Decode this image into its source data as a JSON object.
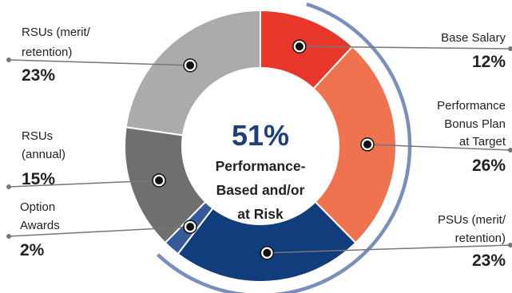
{
  "chart_data": {
    "type": "pie",
    "variant": "donut",
    "start_angle_deg": 0,
    "direction": "clockwise",
    "slices": [
      {
        "name": [
          "Base Salary"
        ],
        "value": 12,
        "label": "12%",
        "color": "#e8372a",
        "label_side": "right"
      },
      {
        "name": [
          "Performance",
          "Bonus Plan",
          "at Target"
        ],
        "value": 26,
        "label": "26%",
        "color": "#f07350",
        "label_side": "right"
      },
      {
        "name": [
          "PSUs (merit/",
          "retention)"
        ],
        "value": 23,
        "label": "23%",
        "color": "#123d7c",
        "label_side": "right"
      },
      {
        "name": [
          "Option",
          "Awards"
        ],
        "value": 2,
        "label": "2%",
        "color": "#355a99",
        "label_side": "left"
      },
      {
        "name": [
          "RSUs",
          "(annual)"
        ],
        "value": 15,
        "label": "15%",
        "color": "#6f6f6f",
        "label_side": "left"
      },
      {
        "name": [
          "RSUs (merit/",
          "retention)"
        ],
        "value": 23,
        "label": "23%",
        "color": "#ababab",
        "label_side": "left"
      }
    ],
    "center": {
      "value": "51%",
      "lines": [
        "Performance-",
        "Based and/or",
        "at Risk"
      ]
    },
    "highlight_arc": {
      "color": "#7b8fbd",
      "covers": [
        "Base Salary",
        "Performance Bonus Plan at Target",
        "PSUs (merit/ retention)"
      ]
    },
    "leader_line_color": "#777777"
  }
}
